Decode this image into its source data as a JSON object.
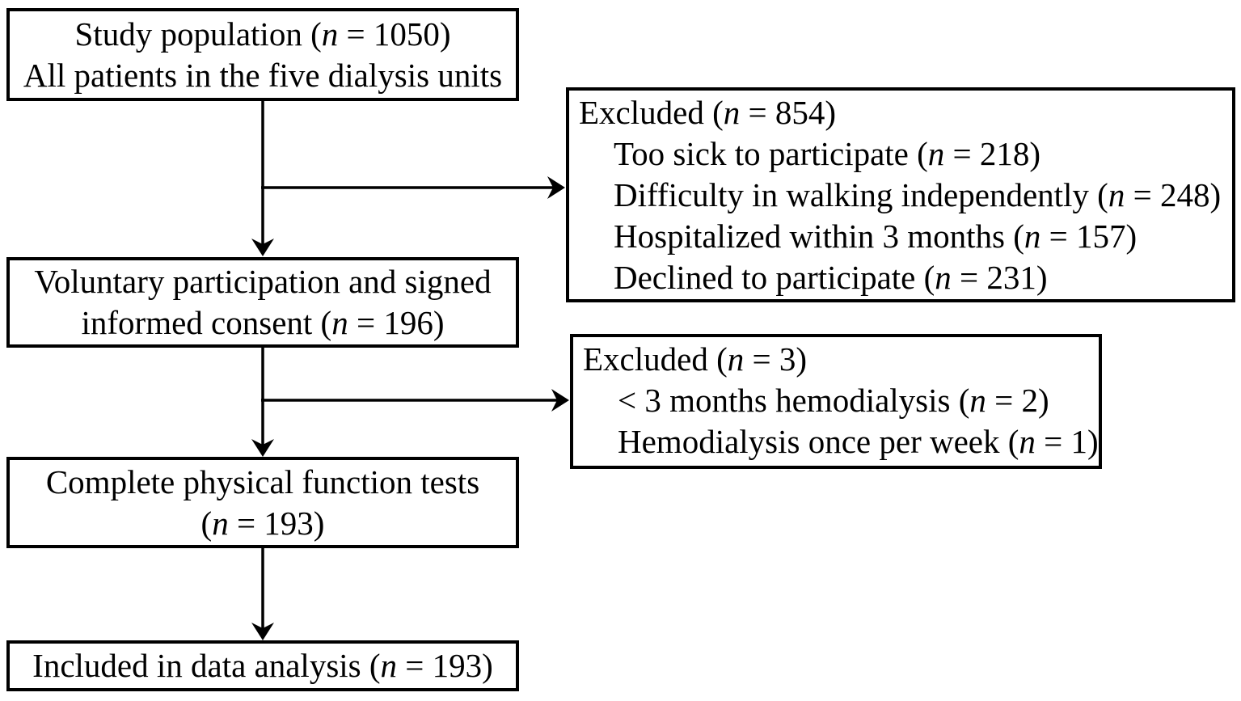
{
  "colors": {
    "background": "#ffffff",
    "line": "#000000",
    "text": "#000000"
  },
  "boxes": {
    "study_population": {
      "lines": [
        "Study population (n = 1050)",
        "All patients in the five dialysis units"
      ]
    },
    "excluded_1": {
      "title": "Excluded (n = 854)",
      "items": [
        "Too sick to participate (n = 218)",
        "Difficulty in walking independently (n = 248)",
        "Hospitalized within 3 months (n = 157)",
        "Declined to participate (n = 231)"
      ]
    },
    "voluntary_consent": {
      "lines": [
        "Voluntary participation and signed",
        "informed consent (n = 196)"
      ]
    },
    "excluded_2": {
      "title": "Excluded (n = 3)",
      "items": [
        "< 3 months hemodialysis (n = 2)",
        "Hemodialysis once per week (n = 1)"
      ]
    },
    "function_tests": {
      "lines": [
        "Complete physical function tests",
        "(n = 193)"
      ]
    },
    "data_analysis": {
      "lines": [
        "Included in data analysis (n = 193)"
      ]
    }
  }
}
